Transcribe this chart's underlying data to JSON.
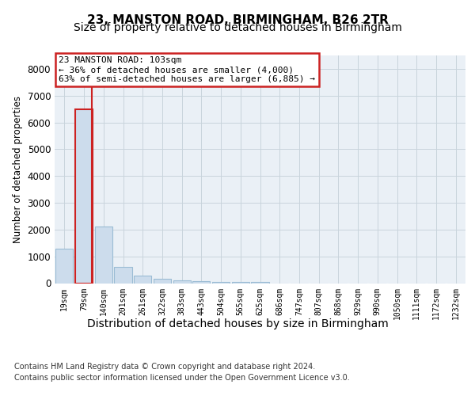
{
  "title1": "23, MANSTON ROAD, BIRMINGHAM, B26 2TR",
  "title2": "Size of property relative to detached houses in Birmingham",
  "xlabel": "Distribution of detached houses by size in Birmingham",
  "ylabel": "Number of detached properties",
  "categories": [
    "19sqm",
    "79sqm",
    "140sqm",
    "201sqm",
    "261sqm",
    "322sqm",
    "383sqm",
    "443sqm",
    "504sqm",
    "565sqm",
    "625sqm",
    "686sqm",
    "747sqm",
    "807sqm",
    "868sqm",
    "929sqm",
    "990sqm",
    "1050sqm",
    "1111sqm",
    "1172sqm",
    "1232sqm"
  ],
  "bar_heights": [
    1300,
    6500,
    2100,
    600,
    280,
    150,
    100,
    70,
    50,
    50,
    30,
    0,
    0,
    0,
    0,
    0,
    0,
    0,
    0,
    0,
    0
  ],
  "bar_color": "#ccdcec",
  "bar_edge_color": "#9bbcd4",
  "highlight_bar_index": 1,
  "highlight_edge_color": "#cc2222",
  "property_line_x": 1.4,
  "property_line_color": "#cc2222",
  "annotation_text": "23 MANSTON ROAD: 103sqm\n← 36% of detached houses are smaller (4,000)\n63% of semi-detached houses are larger (6,885) →",
  "annotation_box_color": "#ffffff",
  "annotation_box_edge_color": "#cc2222",
  "ylim": [
    0,
    8500
  ],
  "yticks": [
    0,
    1000,
    2000,
    3000,
    4000,
    5000,
    6000,
    7000,
    8000
  ],
  "footer1": "Contains HM Land Registry data © Crown copyright and database right 2024.",
  "footer2": "Contains public sector information licensed under the Open Government Licence v3.0.",
  "plot_bg_color": "#eaf0f6",
  "grid_color": "#c8d4dc",
  "title_fontsize": 11,
  "subtitle_fontsize": 10,
  "tick_fontsize": 7,
  "ylabel_fontsize": 8.5,
  "xlabel_fontsize": 10,
  "footer_fontsize": 7,
  "annot_fontsize": 8
}
